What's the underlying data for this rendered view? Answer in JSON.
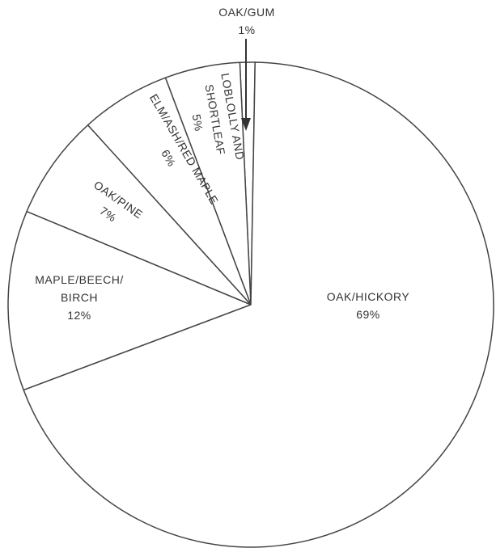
{
  "chart_data": {
    "type": "pie",
    "categories": [
      "OAK/HICKORY",
      "MAPLE/BEECH/\nBIRCH",
      "OAK/PINE",
      "ELM/ASH/RED MAPLE",
      "LOBLOLLY AND\nSHORTLEAF",
      "OAK/GUM"
    ],
    "values": [
      69,
      12,
      7,
      6,
      5,
      1
    ],
    "value_labels": [
      "69%",
      "12%",
      "7%",
      "6%",
      "5%",
      "1%"
    ],
    "color": "#ffffff"
  }
}
